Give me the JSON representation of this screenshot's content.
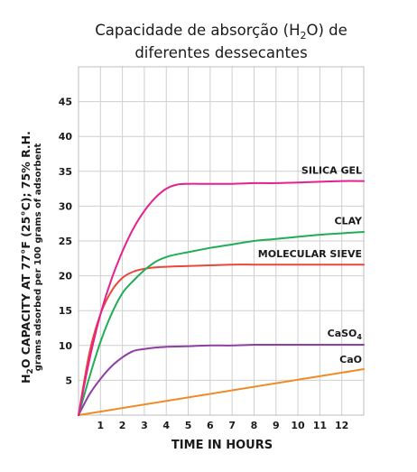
{
  "chart_data": {
    "type": "line",
    "title_parts": {
      "line1_pre": "Capacidade de absorção (H",
      "line1_sub": "2",
      "line1_post": "O) de",
      "line2": "diferentes dessecantes"
    },
    "xlabel": "TIME IN HOURS",
    "ylabel_parts": {
      "pre": "H",
      "sub": "2",
      "post": "O CAPACITY AT 77°F (25°C); 75% R.H."
    },
    "ylabel2": "grams adsorbed per 100 grams of adsorbent",
    "xlim": [
      0,
      13
    ],
    "ylim": [
      0,
      50
    ],
    "xticks": [
      1,
      2,
      3,
      4,
      5,
      6,
      7,
      8,
      9,
      10,
      11,
      12
    ],
    "yticks": [
      5,
      10,
      15,
      20,
      25,
      30,
      35,
      40,
      45
    ],
    "grid": true,
    "series": [
      {
        "name": "SILICA GEL",
        "name_sub": "",
        "color": "#e5208f",
        "x": [
          0,
          0.5,
          1,
          1.5,
          2,
          2.5,
          3,
          3.5,
          4,
          4.5,
          5,
          5.5,
          6,
          7,
          8,
          9,
          10,
          11,
          12,
          13
        ],
        "y": [
          0,
          8,
          14.5,
          19.5,
          23.5,
          26.8,
          29.3,
          31.2,
          32.5,
          33.1,
          33.2,
          33.2,
          33.2,
          33.2,
          33.3,
          33.3,
          33.4,
          33.5,
          33.6,
          33.6
        ]
      },
      {
        "name": "CLAY",
        "name_sub": "",
        "color": "#1fad56",
        "x": [
          0,
          0.5,
          1,
          1.5,
          2,
          2.5,
          3,
          3.5,
          4,
          4.5,
          5,
          6,
          7,
          8,
          9,
          10,
          11,
          12,
          13
        ],
        "y": [
          0,
          5.5,
          10.5,
          14.5,
          17.5,
          19.3,
          20.8,
          22,
          22.7,
          23.1,
          23.4,
          24,
          24.5,
          25,
          25.3,
          25.6,
          25.9,
          26.1,
          26.3
        ]
      },
      {
        "name": "MOLECULAR SIEVE",
        "name_sub": "",
        "color": "#e8473b",
        "x": [
          0,
          0.5,
          1,
          1.5,
          2,
          2.5,
          3,
          3.5,
          4,
          5,
          6,
          7,
          8,
          9,
          10,
          11,
          12,
          13
        ],
        "y": [
          0,
          9,
          14.5,
          17.8,
          19.7,
          20.6,
          21,
          21.2,
          21.3,
          21.4,
          21.5,
          21.6,
          21.6,
          21.6,
          21.6,
          21.6,
          21.6,
          21.6
        ]
      },
      {
        "name": "CaSO",
        "name_sub": "4",
        "color": "#8e3fa4",
        "x": [
          0,
          0.5,
          1,
          1.5,
          2,
          2.5,
          3,
          3.5,
          4,
          5,
          6,
          7,
          8,
          9,
          10,
          11,
          12,
          13
        ],
        "y": [
          0,
          3,
          5.2,
          7,
          8.3,
          9.2,
          9.5,
          9.7,
          9.8,
          9.9,
          10,
          10,
          10.1,
          10.1,
          10.1,
          10.1,
          10.1,
          10.1
        ]
      },
      {
        "name": "CaO",
        "name_sub": "",
        "color": "#f08a24",
        "x": [
          0,
          13
        ],
        "y": [
          0,
          6.6
        ]
      }
    ]
  }
}
